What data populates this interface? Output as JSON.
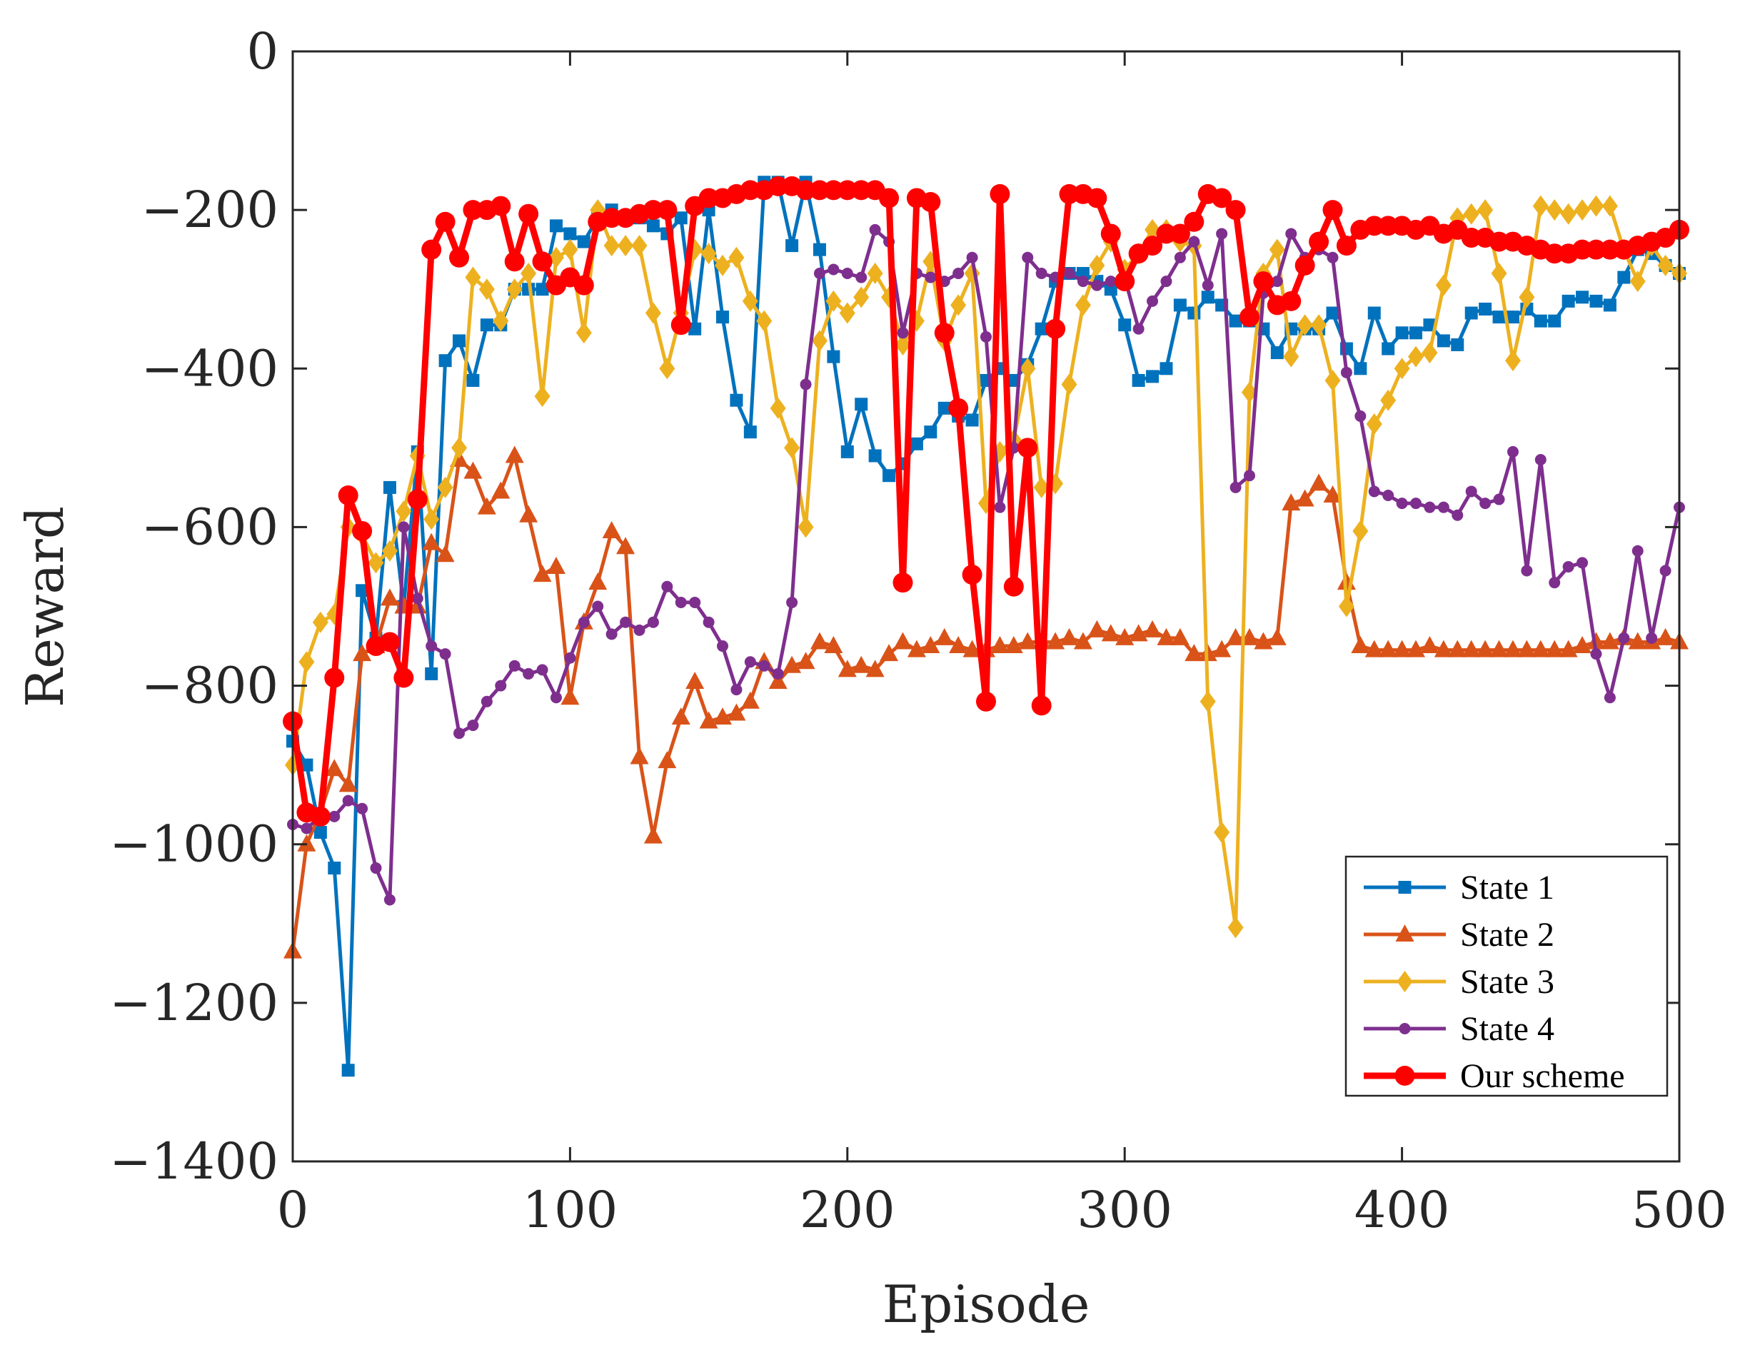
{
  "chart_data": {
    "type": "line",
    "title": "",
    "xlabel": "Episode",
    "ylabel": "Reward",
    "xlim": [
      0,
      500
    ],
    "ylim": [
      -1400,
      0
    ],
    "xticks": [
      0,
      100,
      200,
      300,
      400,
      500
    ],
    "yticks": [
      0,
      -200,
      -400,
      -600,
      -800,
      -1000,
      -1200,
      -1400
    ],
    "xtick_labels": [
      "0",
      "100",
      "200",
      "300",
      "400",
      "500"
    ],
    "ytick_labels": [
      "0",
      "−200",
      "−400",
      "−600",
      "−800",
      "−1000",
      "−1200",
      "−1400"
    ],
    "grid": false,
    "legend_position": "bottom-right",
    "x": [
      0,
      5,
      10,
      15,
      20,
      25,
      30,
      35,
      40,
      45,
      50,
      55,
      60,
      65,
      70,
      75,
      80,
      85,
      90,
      95,
      100,
      105,
      110,
      115,
      120,
      125,
      130,
      135,
      140,
      145,
      150,
      155,
      160,
      165,
      170,
      175,
      180,
      185,
      190,
      195,
      200,
      205,
      210,
      215,
      220,
      225,
      230,
      235,
      240,
      245,
      250,
      255,
      260,
      265,
      270,
      275,
      280,
      285,
      290,
      295,
      300,
      305,
      310,
      315,
      320,
      325,
      330,
      335,
      340,
      345,
      350,
      355,
      360,
      365,
      370,
      375,
      380,
      385,
      390,
      395,
      400,
      405,
      410,
      415,
      420,
      425,
      430,
      435,
      440,
      445,
      450,
      455,
      460,
      465,
      470,
      475,
      480,
      485,
      490,
      495,
      500
    ],
    "series": [
      {
        "name": "State 1",
        "color": "#0072BD",
        "marker": "square",
        "values": [
          -870,
          -900,
          -985,
          -1030,
          -1285,
          -680,
          -740,
          -550,
          -700,
          -505,
          -785,
          -390,
          -365,
          -415,
          -345,
          -345,
          -300,
          -300,
          -300,
          -220,
          -230,
          -240,
          -210,
          -200,
          -210,
          -210,
          -220,
          -230,
          -210,
          -350,
          -200,
          -335,
          -440,
          -480,
          -165,
          -165,
          -245,
          -165,
          -250,
          -385,
          -505,
          -445,
          -510,
          -535,
          -520,
          -495,
          -480,
          -450,
          -460,
          -465,
          -415,
          -400,
          -415,
          -395,
          -350,
          -290,
          -280,
          -280,
          -290,
          -300,
          -345,
          -415,
          -410,
          -400,
          -320,
          -330,
          -310,
          -320,
          -340,
          -340,
          -350,
          -380,
          -350,
          -350,
          -350,
          -330,
          -375,
          -400,
          -330,
          -375,
          -355,
          -355,
          -345,
          -365,
          -370,
          -330,
          -325,
          -335,
          -335,
          -325,
          -340,
          -340,
          -315,
          -310,
          -315,
          -320,
          -285,
          -250,
          -255,
          -270,
          -280
        ]
      },
      {
        "name": "State 2",
        "color": "#D95319",
        "marker": "triangle",
        "values": [
          -1135,
          -1000,
          -960,
          -905,
          -925,
          -760,
          -750,
          -690,
          -700,
          -700,
          -620,
          -635,
          -515,
          -530,
          -575,
          -555,
          -510,
          -585,
          -660,
          -650,
          -815,
          -720,
          -670,
          -605,
          -625,
          -890,
          -990,
          -895,
          -840,
          -795,
          -845,
          -840,
          -835,
          -820,
          -770,
          -795,
          -775,
          -770,
          -745,
          -750,
          -780,
          -775,
          -780,
          -760,
          -745,
          -755,
          -750,
          -740,
          -750,
          -755,
          -755,
          -750,
          -750,
          -745,
          -745,
          -745,
          -740,
          -745,
          -730,
          -735,
          -740,
          -735,
          -730,
          -740,
          -740,
          -760,
          -760,
          -755,
          -740,
          -740,
          -745,
          -740,
          -570,
          -565,
          -545,
          -560,
          -670,
          -750,
          -755,
          -755,
          -755,
          -755,
          -750,
          -755,
          -755,
          -755,
          -755,
          -755,
          -755,
          -755,
          -755,
          -755,
          -755,
          -750,
          -745,
          -745,
          -740,
          -745,
          -745,
          -740,
          -745
        ]
      },
      {
        "name": "State 3",
        "color": "#EDB120",
        "marker": "diamond",
        "values": [
          -900,
          -770,
          -720,
          -710,
          -600,
          -610,
          -645,
          -630,
          -580,
          -510,
          -590,
          -550,
          -500,
          -285,
          -300,
          -340,
          -300,
          -280,
          -435,
          -260,
          -250,
          -355,
          -200,
          -245,
          -245,
          -245,
          -330,
          -400,
          -330,
          -250,
          -255,
          -270,
          -260,
          -315,
          -340,
          -450,
          -500,
          -600,
          -365,
          -315,
          -330,
          -310,
          -280,
          -310,
          -370,
          -340,
          -265,
          -365,
          -320,
          -280,
          -570,
          -505,
          -490,
          -400,
          -550,
          -545,
          -420,
          -320,
          -270,
          -240,
          -275,
          -255,
          -225,
          -225,
          -240,
          -245,
          -820,
          -985,
          -1105,
          -430,
          -280,
          -250,
          -385,
          -345,
          -345,
          -415,
          -700,
          -605,
          -470,
          -440,
          -400,
          -385,
          -380,
          -295,
          -210,
          -205,
          -200,
          -280,
          -390,
          -310,
          -195,
          -200,
          -205,
          -200,
          -195,
          -195,
          -250,
          -290,
          -245,
          -270,
          -280
        ]
      },
      {
        "name": "State 4",
        "color": "#7E2F8E",
        "marker": "circle",
        "values": [
          -975,
          -980,
          -965,
          -965,
          -945,
          -955,
          -1030,
          -1070,
          -600,
          -690,
          -750,
          -760,
          -860,
          -850,
          -820,
          -800,
          -775,
          -785,
          -780,
          -815,
          -765,
          -720,
          -700,
          -735,
          -720,
          -730,
          -720,
          -675,
          -695,
          -695,
          -720,
          -750,
          -805,
          -770,
          -775,
          -785,
          -695,
          -420,
          -280,
          -275,
          -280,
          -285,
          -225,
          -240,
          -355,
          -280,
          -285,
          -290,
          -280,
          -260,
          -360,
          -575,
          -500,
          -260,
          -280,
          -285,
          -280,
          -290,
          -295,
          -290,
          -285,
          -350,
          -315,
          -290,
          -260,
          -240,
          -295,
          -230,
          -550,
          -535,
          -305,
          -290,
          -230,
          -260,
          -250,
          -260,
          -405,
          -460,
          -555,
          -560,
          -570,
          -570,
          -575,
          -575,
          -585,
          -555,
          -570,
          -565,
          -505,
          -655,
          -515,
          -670,
          -650,
          -645,
          -760,
          -815,
          -740,
          -630,
          -740,
          -655,
          -575
        ]
      },
      {
        "name": "Our scheme",
        "color": "#FF0000",
        "marker": "circle-large",
        "values": [
          -845,
          -960,
          -965,
          -790,
          -560,
          -605,
          -750,
          -745,
          -790,
          -565,
          -250,
          -215,
          -260,
          -200,
          -200,
          -195,
          -265,
          -205,
          -265,
          -295,
          -285,
          -295,
          -215,
          -210,
          -210,
          -205,
          -200,
          -200,
          -345,
          -195,
          -185,
          -185,
          -180,
          -175,
          -175,
          -170,
          -170,
          -175,
          -175,
          -175,
          -175,
          -175,
          -175,
          -185,
          -670,
          -185,
          -190,
          -355,
          -450,
          -660,
          -820,
          -180,
          -675,
          -500,
          -825,
          -350,
          -180,
          -180,
          -185,
          -230,
          -290,
          -255,
          -245,
          -230,
          -230,
          -215,
          -180,
          -185,
          -200,
          -335,
          -290,
          -320,
          -315,
          -270,
          -240,
          -200,
          -245,
          -225,
          -220,
          -220,
          -220,
          -225,
          -220,
          -230,
          -225,
          -235,
          -235,
          -240,
          -240,
          -245,
          -250,
          -255,
          -255,
          -250,
          -250,
          -250,
          -250,
          -245,
          -240,
          -235,
          -225
        ]
      }
    ]
  }
}
